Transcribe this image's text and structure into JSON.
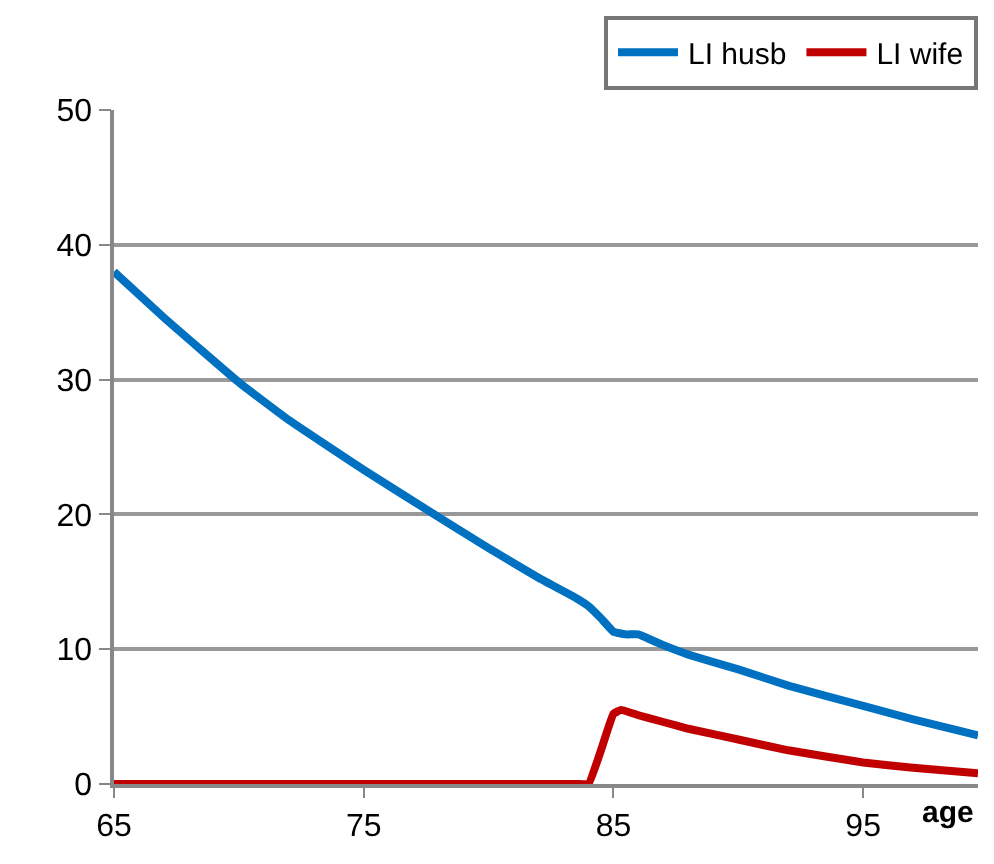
{
  "chart_data": {
    "type": "line",
    "xlabel": "age",
    "xlim": [
      65,
      99.6
    ],
    "xticks": [
      65,
      75,
      85,
      95
    ],
    "ylim": [
      0,
      50
    ],
    "yticks": [
      0,
      10,
      20,
      30,
      40,
      50
    ],
    "grid": "y",
    "legend": "top right",
    "marker": "none",
    "line_style": "solid",
    "series": [
      {
        "name": "LI husb",
        "color": "#0070c0",
        "x": [
          65,
          67,
          70,
          72,
          75,
          78,
          80,
          82,
          83.5,
          84,
          84.5,
          85,
          85.5,
          86,
          86.5,
          87,
          88,
          90,
          92,
          95,
          97,
          99.6
        ],
        "values": [
          38,
          34.6,
          29.8,
          27,
          23.3,
          19.8,
          17.5,
          15.3,
          13.8,
          13.2,
          12.3,
          11.3,
          11.1,
          11.1,
          10.7,
          10.3,
          9.6,
          8.5,
          7.3,
          5.8,
          4.8,
          3.6
        ]
      },
      {
        "name": "LI wife",
        "color": "#c00000",
        "x": [
          65,
          83.5,
          84,
          84.5,
          85,
          85.3,
          86,
          87,
          88,
          90,
          92,
          95,
          97,
          99.6
        ],
        "values": [
          0,
          0,
          0,
          2.5,
          5.2,
          5.5,
          5.1,
          4.6,
          4.1,
          3.3,
          2.5,
          1.6,
          1.2,
          0.8
        ]
      }
    ]
  }
}
